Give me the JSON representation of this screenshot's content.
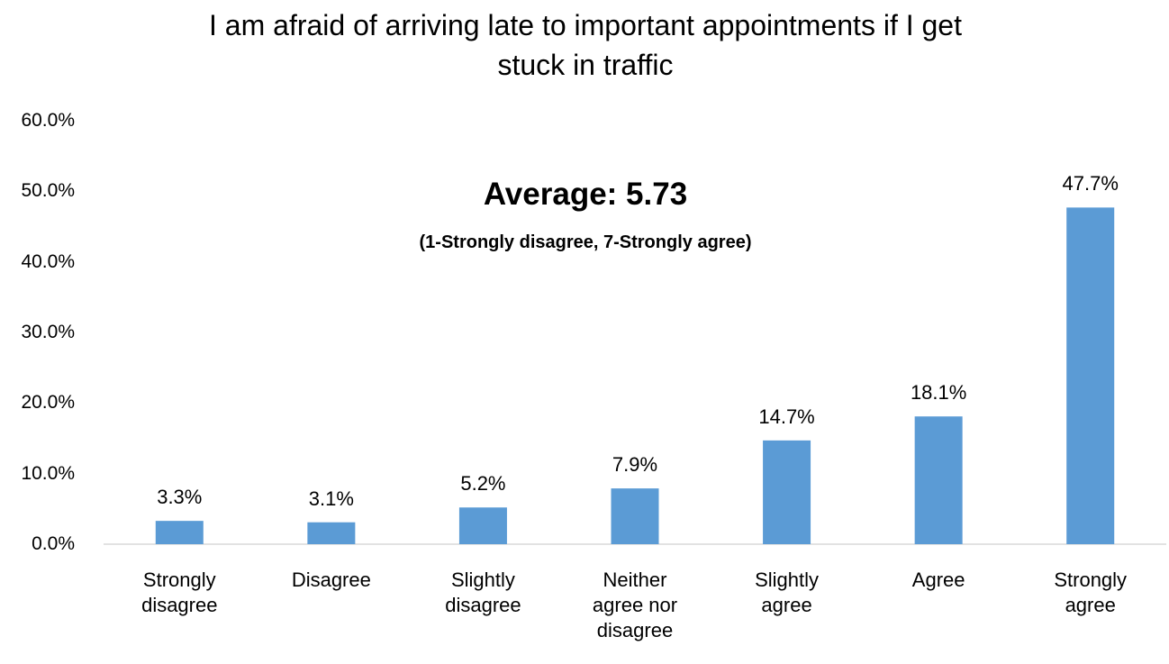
{
  "chart_data": {
    "type": "bar",
    "title": "I am afraid of arriving late to important appointments if I get stuck in traffic",
    "annotations": [
      "Average: 5.73",
      "(1-Strongly disagree, 7-Strongly agree)"
    ],
    "categories": [
      "Strongly disagree",
      "Disagree",
      "Slightly disagree",
      "Neither agree nor disagree",
      "Slightly agree",
      "Agree",
      "Strongly agree"
    ],
    "values": [
      3.3,
      3.1,
      5.2,
      7.9,
      14.7,
      18.1,
      47.7
    ],
    "value_labels": [
      "3.3%",
      "3.1%",
      "5.2%",
      "7.9%",
      "14.7%",
      "18.1%",
      "47.7%"
    ],
    "color": "#5b9bd5",
    "ylim": [
      0,
      60
    ],
    "yticks": [
      {
        "value": 0,
        "label": "0.0%"
      },
      {
        "value": 10,
        "label": "10.0%"
      },
      {
        "value": 20,
        "label": "20.0%"
      },
      {
        "value": 30,
        "label": "30.0%"
      },
      {
        "value": 40,
        "label": "40.0%"
      },
      {
        "value": 50,
        "label": "50.0%"
      },
      {
        "value": 60,
        "label": "60.0%"
      }
    ],
    "grid": false
  }
}
